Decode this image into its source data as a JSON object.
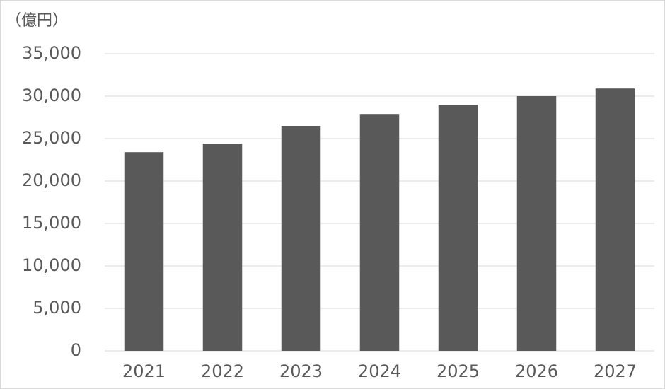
{
  "chart_data": {
    "type": "bar",
    "y_label": "（億円）",
    "categories": [
      "2021",
      "2022",
      "2023",
      "2024",
      "2025",
      "2026",
      "2027"
    ],
    "values": [
      23400,
      24400,
      26500,
      27900,
      29000,
      30000,
      30900
    ],
    "color": "#595959",
    "ylim": [
      0,
      35000
    ],
    "yticks": [
      0,
      {
        "value": 5000,
        "label": "5,000"
      },
      {
        "value": 10000,
        "label": "10,000"
      },
      {
        "value": 15000,
        "label": "15,000"
      },
      {
        "value": 20000,
        "label": "20,000"
      },
      {
        "value": 25000,
        "label": "25,000"
      },
      {
        "value": 30000,
        "label": "30,000"
      },
      {
        "value": 35000,
        "label": "35,000"
      }
    ],
    "grid": true
  }
}
